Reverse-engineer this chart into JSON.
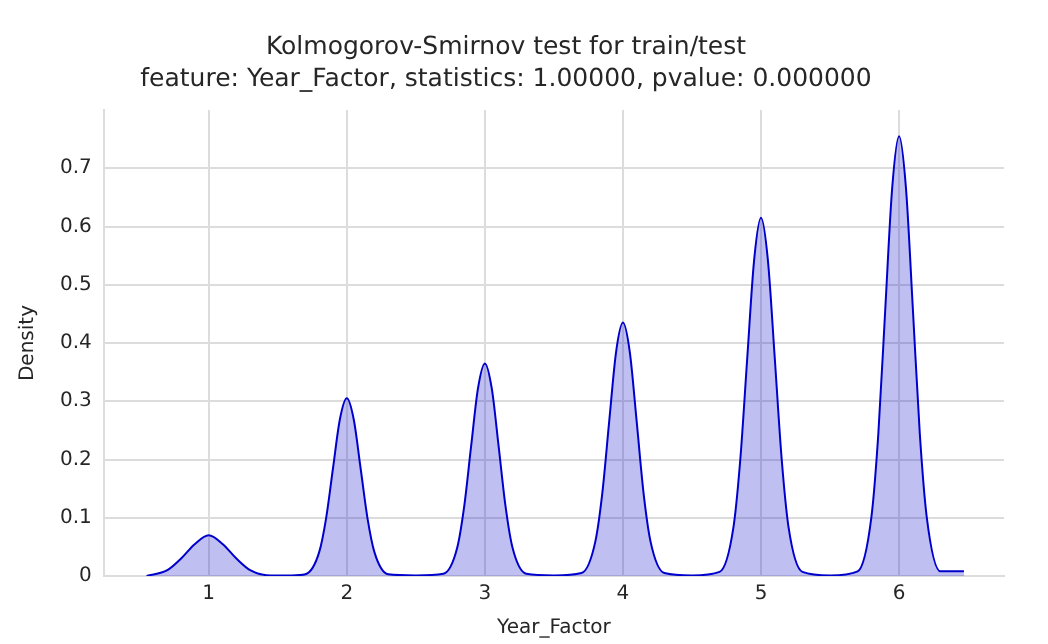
{
  "chart_data": {
    "type": "area",
    "title": "Kolmogorov-Smirnov test for train/test",
    "subtitle": "feature: Year_Factor, statistics: 1.00000, pvalue: 0.000000",
    "xlabel": "Year_Factor",
    "ylabel": "Density",
    "xlim": [
      0.24,
      6.76
    ],
    "xticks": [
      1,
      2,
      3,
      4,
      5,
      6
    ],
    "ylim": [
      0,
      0.8
    ],
    "yticks": [
      0,
      0.1,
      0.2,
      0.3,
      0.4,
      0.5,
      0.6,
      0.7
    ],
    "grid": true,
    "legend": false,
    "series": [
      {
        "color": "#0000cc",
        "x": [
          0.55,
          0.7,
          0.8,
          0.9,
          1.0,
          1.1,
          1.2,
          1.3,
          1.45,
          1.6,
          1.7,
          1.8,
          1.85,
          1.9,
          1.95,
          2.0,
          2.05,
          2.1,
          2.15,
          2.2,
          2.3,
          2.5,
          2.7,
          2.8,
          2.85,
          2.9,
          2.95,
          3.0,
          3.05,
          3.1,
          3.15,
          3.2,
          3.3,
          3.5,
          3.7,
          3.8,
          3.85,
          3.9,
          3.95,
          4.0,
          4.05,
          4.1,
          4.15,
          4.2,
          4.3,
          4.5,
          4.7,
          4.8,
          4.85,
          4.9,
          4.95,
          5.0,
          5.05,
          5.1,
          5.15,
          5.2,
          5.3,
          5.5,
          5.7,
          5.8,
          5.85,
          5.9,
          5.95,
          6.0,
          6.05,
          6.1,
          6.15,
          6.2,
          6.3,
          6.47
        ],
        "values": [
          0.0,
          0.01,
          0.03,
          0.055,
          0.07,
          0.055,
          0.03,
          0.01,
          0.001,
          0.001,
          0.003,
          0.041,
          0.099,
          0.185,
          0.269,
          0.305,
          0.269,
          0.185,
          0.099,
          0.041,
          0.003,
          0.001,
          0.004,
          0.049,
          0.119,
          0.222,
          0.322,
          0.365,
          0.322,
          0.222,
          0.119,
          0.049,
          0.004,
          0.001,
          0.005,
          0.059,
          0.141,
          0.264,
          0.384,
          0.435,
          0.384,
          0.264,
          0.141,
          0.059,
          0.005,
          0.001,
          0.007,
          0.083,
          0.2,
          0.373,
          0.542,
          0.615,
          0.542,
          0.373,
          0.2,
          0.083,
          0.007,
          0.001,
          0.008,
          0.102,
          0.245,
          0.458,
          0.666,
          0.755,
          0.666,
          0.458,
          0.245,
          0.102,
          0.008,
          0.008
        ]
      }
    ]
  }
}
